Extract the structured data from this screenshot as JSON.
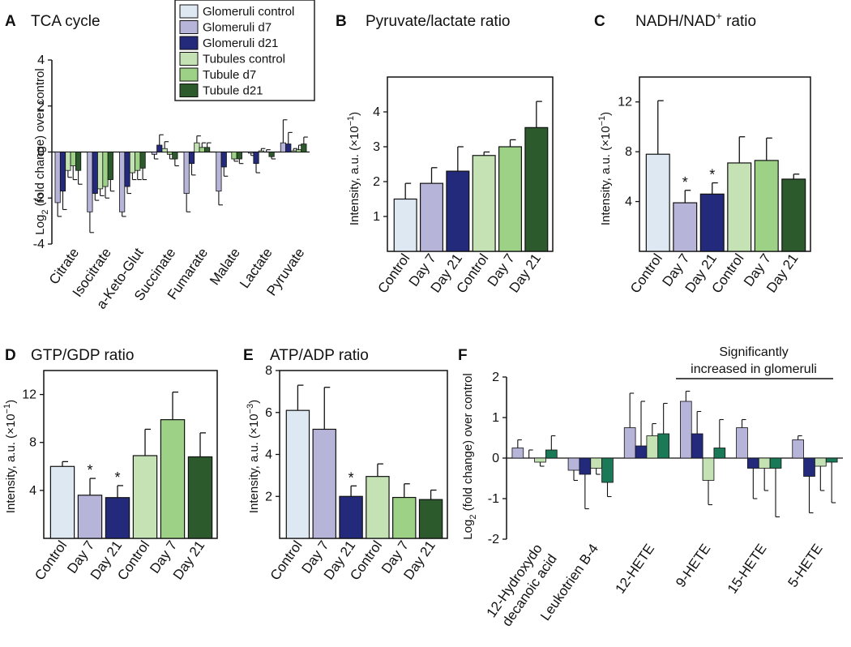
{
  "colors": {
    "glom_ctrl": "#dde8f2",
    "glom_d7": "#b7b4d9",
    "glom_d21": "#232a7c",
    "tub_ctrl": "#c4e2b4",
    "tub_d7": "#9dd185",
    "tub_d21": "#2d5a2d",
    "tub_d21_f": "#1a7a57"
  },
  "legend": [
    {
      "label": "Glomeruli control",
      "color": "#dde8f2"
    },
    {
      "label": "Glomeruli d7",
      "color": "#b7b4d9"
    },
    {
      "label": "Glomeruli d21",
      "color": "#232a7c"
    },
    {
      "label": "Tubules control",
      "color": "#c4e2b4"
    },
    {
      "label": "Tubule d7",
      "color": "#9dd185"
    },
    {
      "label": "Tubule d21",
      "color": "#2d5a2d"
    }
  ],
  "annotation_F": {
    "line1": "Significantly",
    "line2": "increased in glomeruli"
  },
  "chart_data": [
    {
      "panel": "A",
      "title": "TCA cycle",
      "type": "bar",
      "ylabel_main": "Log",
      "ylabel_sub": "2",
      "ylabel_rest": " (fold change) over control",
      "ylim": [
        -4,
        4
      ],
      "yticks": [
        -4,
        -2,
        0,
        2,
        4
      ],
      "categories": [
        "Citrate",
        "Isocitrate",
        "a-Keto-Glut",
        "Succinate",
        "Fumarate",
        "Malate",
        "Lactate",
        "Pyruvate"
      ],
      "series": [
        {
          "name": "Glomeruli d7",
          "values": [
            -2.2,
            -2.6,
            -2.6,
            -0.1,
            -1.8,
            -1.7,
            -0.05,
            0.4
          ],
          "errors": [
            0.6,
            0.9,
            0.2,
            0.2,
            0.8,
            0.6,
            0.1,
            1.0
          ]
        },
        {
          "name": "Glomeruli d21",
          "values": [
            -1.7,
            -1.8,
            -1.5,
            0.3,
            -0.5,
            -0.65,
            -0.5,
            0.35
          ],
          "errors": [
            0.8,
            0.3,
            0.3,
            0.45,
            0.5,
            0.4,
            0.4,
            0.5
          ]
        },
        {
          "name": "Tubules control",
          "values": [
            -0.8,
            -1.6,
            -0.9,
            0.15,
            0.4,
            0.0,
            0.05,
            0.05
          ],
          "errors": [
            0.3,
            0.3,
            0.3,
            0.3,
            0.3,
            0.0,
            0.1,
            0.1
          ]
        },
        {
          "name": "Tubule d7",
          "values": [
            -0.6,
            -1.5,
            -0.8,
            -0.1,
            0.2,
            -0.3,
            0.0,
            0.1
          ],
          "errors": [
            0.6,
            0.5,
            0.4,
            0.2,
            0.2,
            0.1,
            0.1,
            0.2
          ]
        },
        {
          "name": "Tubule d21",
          "values": [
            -0.8,
            -1.2,
            -0.7,
            -0.3,
            0.2,
            -0.3,
            -0.2,
            0.35
          ],
          "errors": [
            0.6,
            0.5,
            0.5,
            0.3,
            0.2,
            0.2,
            0.1,
            0.3
          ]
        }
      ]
    },
    {
      "panel": "B",
      "title": "Pyruvate/lactate ratio",
      "type": "bar",
      "ylabel_main": "Intensity, a.u. (×10",
      "ylabel_sup": "−1",
      "ylabel_rest": ")",
      "ylim": [
        0,
        5
      ],
      "yticks": [
        1,
        2,
        3,
        4
      ],
      "categories": [
        "Control",
        "Day 7",
        "Day 21",
        "Control",
        "Day 7",
        "Day 21"
      ],
      "values": [
        1.5,
        1.95,
        2.3,
        2.75,
        3.0,
        3.55
      ],
      "errors": [
        0.45,
        0.45,
        0.7,
        0.1,
        0.2,
        0.75
      ],
      "stars": [
        false,
        false,
        false,
        false,
        false,
        false
      ]
    },
    {
      "panel": "C",
      "title": "NADH/NAD",
      "title_sup": "+",
      "title_rest": " ratio",
      "type": "bar",
      "ylabel_main": "Intensity, a.u. (×10",
      "ylabel_sup": "−1",
      "ylabel_rest": ")",
      "ylim": [
        0,
        14
      ],
      "yticks": [
        4,
        8,
        12
      ],
      "categories": [
        "Control",
        "Day 7",
        "Day 21",
        "Control",
        "Day 7",
        "Day 21"
      ],
      "values": [
        7.8,
        3.9,
        4.6,
        7.1,
        7.3,
        5.8
      ],
      "errors": [
        4.3,
        1.0,
        0.9,
        2.1,
        1.8,
        0.4
      ],
      "stars": [
        false,
        true,
        true,
        false,
        false,
        false
      ]
    },
    {
      "panel": "D",
      "title": "GTP/GDP ratio",
      "type": "bar",
      "ylabel_main": "Intensity, a.u. (×10",
      "ylabel_sup": "−1",
      "ylabel_rest": ")",
      "ylim": [
        0,
        14
      ],
      "yticks": [
        4,
        8,
        12
      ],
      "categories": [
        "Control",
        "Day 7",
        "Day 21",
        "Control",
        "Day 7",
        "Day 21"
      ],
      "values": [
        6.0,
        3.6,
        3.4,
        6.9,
        9.9,
        6.8
      ],
      "errors": [
        0.4,
        1.4,
        1.0,
        2.2,
        2.3,
        2.0
      ],
      "stars": [
        false,
        true,
        true,
        false,
        false,
        false
      ]
    },
    {
      "panel": "E",
      "title": "ATP/ADP ratio",
      "type": "bar",
      "ylabel_main": "Intensity, a.u. (×10",
      "ylabel_sup": "−3",
      "ylabel_rest": ")",
      "ylim": [
        0,
        8
      ],
      "yticks": [
        2,
        4,
        6,
        8
      ],
      "categories": [
        "Control",
        "Day 7",
        "Day 21",
        "Control",
        "Day 7",
        "Day 21"
      ],
      "values": [
        6.1,
        5.2,
        2.0,
        2.95,
        1.95,
        1.85
      ],
      "errors": [
        1.2,
        2.0,
        0.5,
        0.6,
        0.65,
        0.45
      ],
      "stars": [
        false,
        false,
        true,
        false,
        false,
        false
      ]
    },
    {
      "panel": "F",
      "title": "",
      "type": "bar",
      "ylabel_main": "Log",
      "ylabel_sub": "2",
      "ylabel_rest": " (fold change) over control",
      "ylim": [
        -2,
        2
      ],
      "yticks": [
        -2,
        -1,
        0,
        1,
        2
      ],
      "categories": [
        "12-Hydroxydo decanoic acid",
        "Leukotrien B-4",
        "12-HETE",
        "9-HETE",
        "15-HETE",
        "5-HETE"
      ],
      "category_lines": [
        [
          "12-Hydroxydo",
          "decanoic acid"
        ],
        [
          "Leukotrien B-4"
        ],
        [
          "12-HETE"
        ],
        [
          "9-HETE"
        ],
        [
          "15-HETE"
        ],
        [
          "5-HETE"
        ]
      ],
      "series": [
        {
          "name": "Glomeruli d7",
          "values": [
            0.25,
            -0.3,
            0.75,
            1.4,
            0.75,
            0.45
          ],
          "errors": [
            0.2,
            0.25,
            0.85,
            0.25,
            0.2,
            0.1
          ]
        },
        {
          "name": "Glomeruli d21",
          "values": [
            0.0,
            -0.4,
            0.3,
            0.6,
            -0.25,
            -0.45
          ],
          "errors": [
            0.2,
            0.85,
            1.1,
            0.55,
            0.75,
            0.9
          ]
        },
        {
          "name": "Tubules control",
          "values": [
            -0.1,
            -0.25,
            0.55,
            -0.55,
            -0.25,
            -0.2
          ],
          "errors": [
            0.1,
            0.15,
            0.3,
            0.6,
            0.55,
            0.6
          ]
        },
        {
          "name": "Tubule d21",
          "values": [
            0.2,
            -0.6,
            0.6,
            0.25,
            -0.25,
            -0.1
          ],
          "errors": [
            0.35,
            0.35,
            0.75,
            0.7,
            1.2,
            1.0
          ]
        }
      ]
    }
  ]
}
